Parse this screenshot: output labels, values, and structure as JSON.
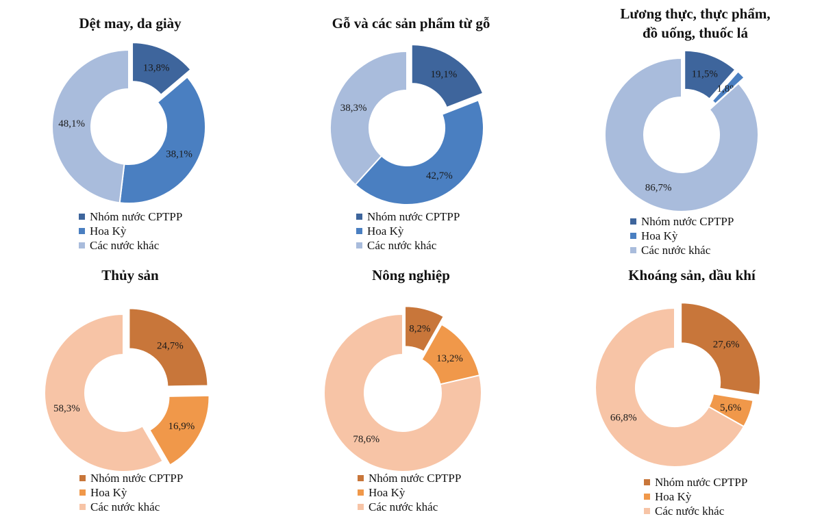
{
  "legend_labels": [
    "Nhóm nước CPTPP",
    "Hoa Kỳ",
    "Các nước khác"
  ],
  "palettes": {
    "blue": [
      "#3e659c",
      "#4a7fc1",
      "#a9bcdc"
    ],
    "orange": [
      "#c8763a",
      "#f0984a",
      "#f7c4a6"
    ]
  },
  "chart_data": [
    {
      "type": "pie",
      "variant": "donut",
      "title": "Dệt may, da giày",
      "categories": [
        "Nhóm nước CPTPP",
        "Hoa Kỳ",
        "Các nước khác"
      ],
      "values": [
        13.8,
        38.1,
        48.1
      ],
      "labels": [
        "13,8%",
        "38,1%",
        "48,1%"
      ],
      "exploded": [
        true,
        false,
        false
      ],
      "palette": "blue",
      "legend": "bottom"
    },
    {
      "type": "pie",
      "variant": "donut",
      "title": "Gỗ và các sản phẩm từ gỗ",
      "categories": [
        "Nhóm nước CPTPP",
        "Hoa Kỳ",
        "Các nước khác"
      ],
      "values": [
        19.1,
        42.7,
        38.3
      ],
      "labels": [
        "19,1%",
        "42,7%",
        "38,3%"
      ],
      "exploded": [
        true,
        false,
        false
      ],
      "palette": "blue",
      "legend": "bottom"
    },
    {
      "type": "pie",
      "variant": "donut",
      "title": "Lương thực, thực phẩm, đồ uống, thuốc lá",
      "title_lines": [
        "Lương thực, thực phẩm,",
        "đồ uống, thuốc lá"
      ],
      "categories": [
        "Nhóm nước CPTPP",
        "Hoa Kỳ",
        "Các nước khác"
      ],
      "values": [
        11.5,
        1.8,
        86.7
      ],
      "labels": [
        "11,5%",
        "1,8%",
        "86,7%"
      ],
      "exploded": [
        true,
        true,
        false
      ],
      "palette": "blue",
      "legend": "bottom"
    },
    {
      "type": "pie",
      "variant": "donut",
      "title": "Thủy sản",
      "categories": [
        "Nhóm nước CPTPP",
        "Hoa Kỳ",
        "Các nước khác"
      ],
      "values": [
        24.7,
        16.9,
        58.3
      ],
      "labels": [
        "24,7%",
        "16,9%",
        "58,3%"
      ],
      "exploded": [
        true,
        true,
        false
      ],
      "palette": "orange",
      "legend": "bottom"
    },
    {
      "type": "pie",
      "variant": "donut",
      "title": "Nông nghiệp",
      "categories": [
        "Nhóm nước CPTPP",
        "Hoa Kỳ",
        "Các nước khác"
      ],
      "values": [
        8.2,
        13.2,
        78.6
      ],
      "labels": [
        "8,2%",
        "13,2%",
        "78,6%"
      ],
      "exploded": [
        true,
        false,
        false
      ],
      "palette": "orange",
      "legend": "bottom"
    },
    {
      "type": "pie",
      "variant": "donut",
      "title": "Khoáng sản, dầu khí",
      "categories": [
        "Nhóm nước CPTPP",
        "Hoa Kỳ",
        "Các nước khác"
      ],
      "values": [
        27.6,
        5.6,
        66.8
      ],
      "labels": [
        "27,6%",
        "5,6%",
        "66,8%"
      ],
      "exploded": [
        true,
        false,
        false
      ],
      "palette": "orange",
      "legend": "bottom"
    }
  ]
}
